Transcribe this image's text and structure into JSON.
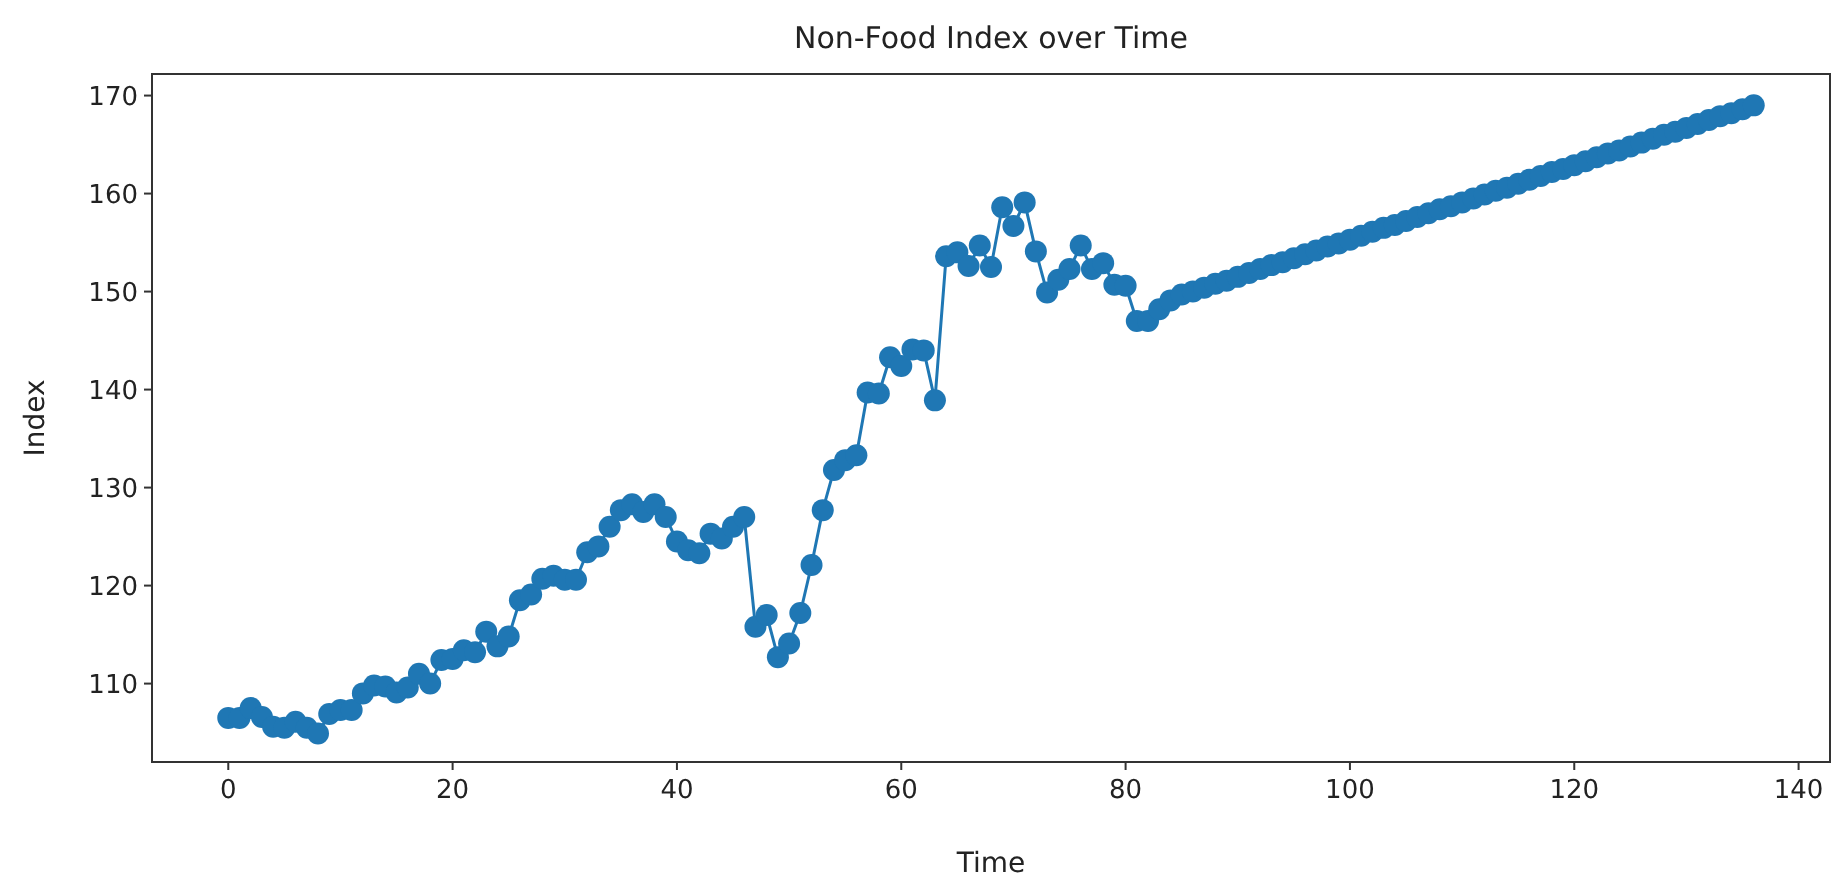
{
  "chart_data": {
    "type": "line",
    "title": "Non-Food Index over Time",
    "xlabel": "Time",
    "ylabel": "Index",
    "x": [
      0,
      1,
      2,
      3,
      4,
      5,
      6,
      7,
      8,
      9,
      10,
      11,
      12,
      13,
      14,
      15,
      16,
      17,
      18,
      19,
      20,
      21,
      22,
      23,
      24,
      25,
      26,
      27,
      28,
      29,
      30,
      31,
      32,
      33,
      34,
      35,
      36,
      37,
      38,
      39,
      40,
      41,
      42,
      43,
      44,
      45,
      46,
      47,
      48,
      49,
      50,
      51,
      52,
      53,
      54,
      55,
      56,
      57,
      58,
      59,
      60,
      61,
      62,
      63,
      64,
      65,
      66,
      67,
      68,
      69,
      70,
      71,
      72,
      73,
      74,
      75,
      76,
      77,
      78,
      79,
      80,
      81,
      82,
      83,
      84,
      85,
      86,
      87,
      88,
      89,
      90,
      91,
      92,
      93,
      94,
      95,
      96,
      97,
      98,
      99,
      100,
      101,
      102,
      103,
      104,
      105,
      106,
      107,
      108,
      109,
      110,
      111,
      112,
      113,
      114,
      115,
      116,
      117,
      118,
      119,
      120,
      121,
      122,
      123,
      124,
      125,
      126,
      127,
      128,
      129,
      130,
      131,
      132,
      133,
      134,
      135,
      136
    ],
    "series": [
      {
        "color": "#1f77b4",
        "values": [
          106.5,
          106.5,
          107.5,
          106.6,
          105.6,
          105.5,
          106.1,
          105.5,
          104.9,
          106.9,
          107.3,
          107.3,
          109.0,
          109.8,
          109.7,
          109.1,
          109.6,
          111.0,
          110.0,
          112.4,
          112.5,
          113.4,
          113.2,
          115.3,
          113.8,
          114.8,
          118.5,
          119.1,
          120.7,
          121.0,
          120.6,
          120.6,
          123.4,
          124.0,
          126.0,
          127.7,
          128.3,
          127.5,
          128.3,
          127.0,
          124.5,
          123.6,
          123.3,
          125.3,
          124.8,
          126.0,
          127.0,
          115.8,
          117.0,
          112.7,
          114.1,
          117.2,
          122.1,
          127.7,
          131.8,
          132.8,
          133.3,
          139.7,
          139.6,
          143.3,
          142.4,
          144.1,
          144.0,
          138.9,
          153.6,
          154.0,
          152.6,
          154.7,
          152.5,
          158.6,
          156.7,
          159.1,
          154.1,
          149.9,
          151.2,
          152.3,
          154.7,
          152.3,
          152.9,
          150.7,
          150.6,
          147.0,
          147.0,
          148.2,
          149.1,
          149.7,
          150.0,
          150.4,
          150.8,
          151.1,
          151.5,
          151.9,
          152.3,
          152.7,
          153.0,
          153.4,
          153.8,
          154.2,
          154.6,
          154.9,
          155.3,
          155.7,
          156.1,
          156.5,
          156.8,
          157.2,
          157.6,
          158.0,
          158.4,
          158.7,
          159.1,
          159.5,
          159.9,
          160.3,
          160.6,
          161.0,
          161.4,
          161.8,
          162.2,
          162.5,
          162.9,
          163.3,
          163.7,
          164.1,
          164.4,
          164.8,
          165.2,
          165.6,
          166.0,
          166.3,
          166.7,
          167.1,
          167.5,
          167.9,
          168.2,
          168.6,
          169.0
        ]
      }
    ],
    "xlim": [
      -6.8,
      142.8
    ],
    "ylim": [
      102,
      172.2
    ],
    "xticks": [
      0,
      20,
      40,
      60,
      80,
      100,
      120,
      140
    ],
    "yticks": [
      110,
      120,
      130,
      140,
      150,
      160,
      170
    ],
    "marker": "circle",
    "line_style": "solid"
  }
}
